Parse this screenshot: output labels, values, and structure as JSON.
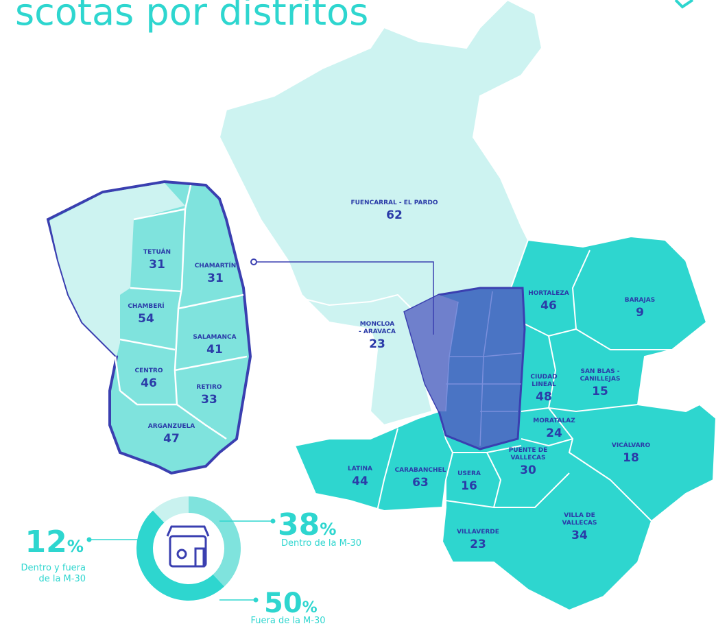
{
  "header": {
    "title": "scotas por distritos"
  },
  "districts": [
    {
      "name": "FUENCARRAL - EL PARDO",
      "value": 62
    },
    {
      "name": [
        "MONCLOA",
        "- ARAVACA"
      ],
      "value": 23
    },
    {
      "name": "HORTALEZA",
      "value": 46
    },
    {
      "name": "BARAJAS",
      "value": 9
    },
    {
      "name": [
        "SAN BLAS -",
        "CANILLEJAS"
      ],
      "value": 15
    },
    {
      "name": [
        "CIUDAD",
        "LINEAL"
      ],
      "value": 48
    },
    {
      "name": "MORATALAZ",
      "value": 24
    },
    {
      "name": [
        "PUENTE DE",
        "VALLECAS"
      ],
      "value": 30
    },
    {
      "name": "VICÁLVARO",
      "value": 18
    },
    {
      "name": "LATINA",
      "value": 44
    },
    {
      "name": "CARABANCHEL",
      "value": 63
    },
    {
      "name": "USERA",
      "value": 16
    },
    {
      "name": "VILLAVERDE",
      "value": 23
    },
    {
      "name": [
        "VILLA DE",
        "VALLECAS"
      ],
      "value": 34
    }
  ],
  "inset_districts": [
    {
      "name": "TETUÁN",
      "value": 31
    },
    {
      "name": "CHAMARTÍN",
      "value": 31
    },
    {
      "name": "CHAMBERÍ",
      "value": 54
    },
    {
      "name": "SALAMANCA",
      "value": 41
    },
    {
      "name": "CENTRO",
      "value": 46
    },
    {
      "name": "RETIRO",
      "value": 33
    },
    {
      "name": "ARGANZUELA",
      "value": 47
    }
  ],
  "donut": {
    "segments": [
      {
        "value": 38,
        "unit": "%",
        "label": [
          "Dentro de la M-30"
        ]
      },
      {
        "value": 50,
        "unit": "%",
        "label": [
          "Fuera de la M-30"
        ]
      },
      {
        "value": 12,
        "unit": "%",
        "label": [
          "Dentro y fuera",
          "de la M-30"
        ]
      }
    ]
  }
}
